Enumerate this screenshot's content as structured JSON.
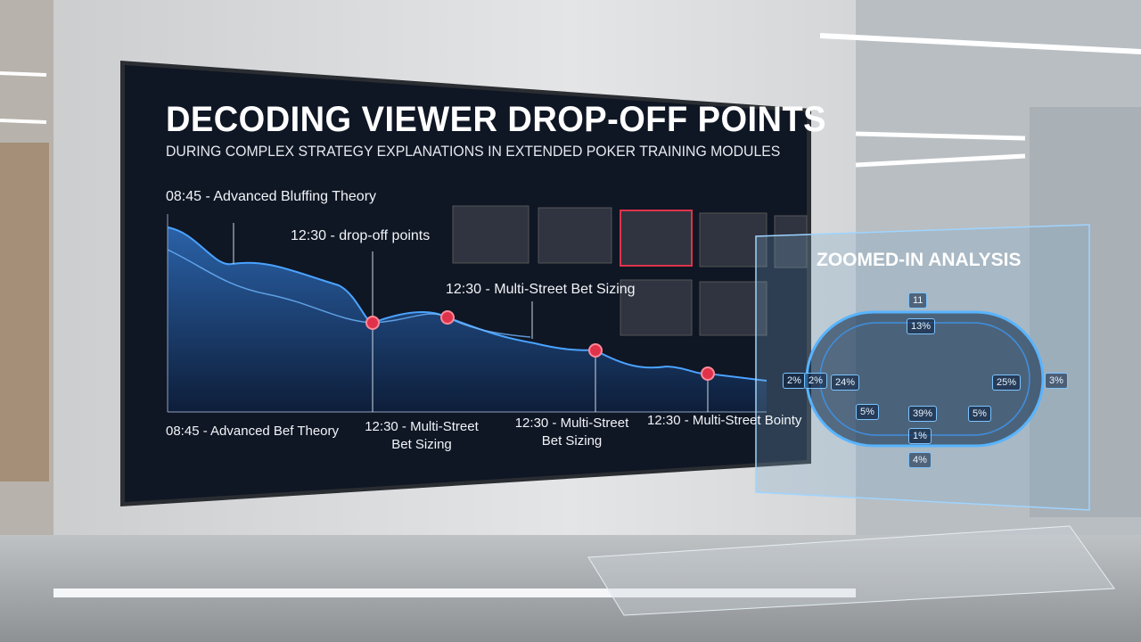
{
  "screen": {
    "title": "DECODING VIEWER DROP-OFF POINTS",
    "subtitle": "DURING COMPLEX STRATEGY EXPLANATIONS IN EXTENDED POKER TRAINING MODULES",
    "annotations": [
      "08:45 - Advanced Bluffing Theory",
      "12:30 - drop-off points",
      "12:30 - Multi-Street Bet Sizing"
    ],
    "timeline_labels": [
      "08:45 - Advanced Bef Theory",
      "12:30 - Multi-Street Bet Sizing",
      "12:30 - Multi-Street Bet Sizing",
      "12:30 - Multi-Street Bointy"
    ]
  },
  "panel": {
    "title": "ZOOMED-IN ANALYSIS",
    "labels": [
      "11",
      "13%",
      "2%",
      "2%",
      "24%",
      "25%",
      "3%",
      "5%",
      "39%",
      "5%",
      "1%",
      "4%"
    ]
  }
}
